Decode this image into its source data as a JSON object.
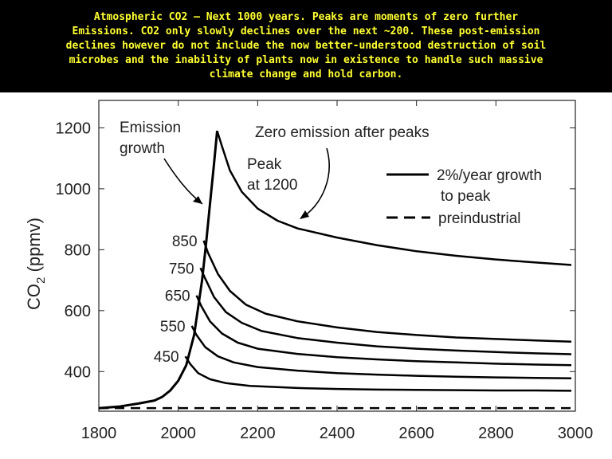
{
  "caption": "Atmospheric CO2 – Next 1000 years. Peaks are moments of zero further\nEmissions. CO2 only slowly declines over the next ~200. These post-emission\ndeclines however do not include the now better-understood destruction of soil\nmicrobes and the inability of plants now in existence to handle such massive\nclimate change and hold carbon.",
  "colors": {
    "caption_bg": "#000000",
    "caption_text": "#ffff33",
    "line": "#000000"
  },
  "chart_data": {
    "type": "line",
    "ylabel_main": "CO",
    "ylabel_sub": "2",
    "ylabel_tail": " (ppmv)",
    "xlim": [
      1800,
      3000
    ],
    "ylim": [
      270,
      1290
    ],
    "xticks": [
      1800,
      2000,
      2200,
      2400,
      2600,
      2800,
      3000
    ],
    "yticks": [
      400,
      600,
      800,
      1000,
      1200
    ],
    "growth_curve": {
      "name": "2%/year growth to peak",
      "x": [
        1800,
        1850,
        1900,
        1940,
        1960,
        1980,
        2000,
        2020,
        2040,
        2060,
        2070,
        2080,
        2090,
        2098
      ],
      "y": [
        280,
        285,
        295,
        305,
        317,
        338,
        370,
        420,
        520,
        700,
        820,
        950,
        1080,
        1190
      ]
    },
    "series": [
      {
        "peak_label": "1200",
        "x": [
          2098,
          2110,
          2130,
          2160,
          2200,
          2250,
          2300,
          2400,
          2500,
          2600,
          2700,
          2800,
          2900,
          2990
        ],
        "y": [
          1190,
          1140,
          1060,
          990,
          935,
          895,
          870,
          840,
          815,
          795,
          780,
          768,
          758,
          750
        ]
      },
      {
        "peak_label": "850",
        "x": [
          2064,
          2075,
          2100,
          2130,
          2170,
          2220,
          2300,
          2400,
          2500,
          2600,
          2700,
          2800,
          2900,
          2990
        ],
        "y": [
          830,
          790,
          720,
          665,
          620,
          590,
          565,
          545,
          530,
          520,
          512,
          507,
          502,
          498
        ]
      },
      {
        "peak_label": "750",
        "x": [
          2056,
          2068,
          2090,
          2120,
          2160,
          2210,
          2300,
          2400,
          2500,
          2600,
          2700,
          2800,
          2900,
          2990
        ],
        "y": [
          740,
          705,
          645,
          595,
          560,
          533,
          510,
          495,
          483,
          475,
          469,
          464,
          460,
          457
        ]
      },
      {
        "peak_label": "650",
        "x": [
          2046,
          2058,
          2080,
          2110,
          2150,
          2200,
          2300,
          2400,
          2500,
          2600,
          2700,
          2800,
          2900,
          2990
        ],
        "y": [
          650,
          615,
          565,
          525,
          495,
          475,
          458,
          447,
          440,
          434,
          430,
          426,
          423,
          421
        ]
      },
      {
        "peak_label": "550",
        "x": [
          2034,
          2046,
          2068,
          2100,
          2140,
          2200,
          2300,
          2400,
          2500,
          2600,
          2700,
          2800,
          2900,
          2990
        ],
        "y": [
          550,
          520,
          480,
          450,
          430,
          415,
          403,
          395,
          390,
          386,
          383,
          381,
          379,
          378
        ]
      },
      {
        "peak_label": "450",
        "x": [
          2018,
          2030,
          2050,
          2080,
          2120,
          2180,
          2300,
          2400,
          2500,
          2600,
          2700,
          2800,
          2900,
          2990
        ],
        "y": [
          450,
          425,
          395,
          375,
          362,
          353,
          346,
          343,
          341,
          340,
          339,
          338,
          338,
          337
        ]
      }
    ],
    "preindustrial": {
      "name": "preindustrial",
      "y": 280
    },
    "legend": {
      "placement": "top-right",
      "entries": [
        {
          "style": "solid",
          "label_line1": "2%/year growth",
          "label_line2": "to peak"
        },
        {
          "style": "dashed",
          "label_line1": "preindustrial",
          "label_line2": ""
        }
      ]
    },
    "annotations": {
      "emission_growth": [
        "Emission",
        "growth"
      ],
      "zero_emission": "Zero emission after peaks",
      "peak_at": [
        "Peak",
        "at 1200"
      ]
    }
  }
}
